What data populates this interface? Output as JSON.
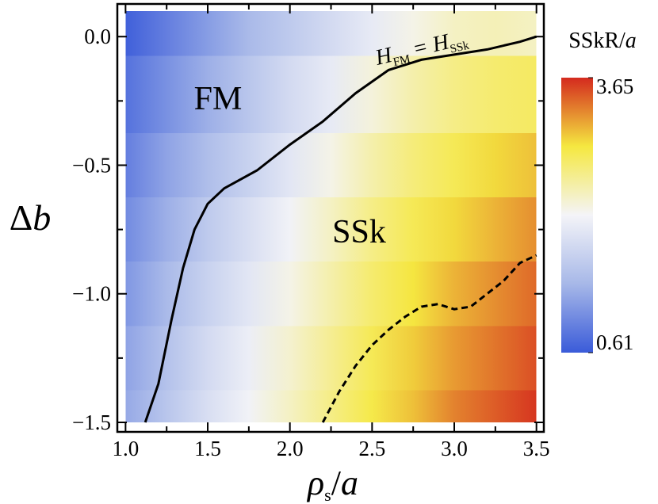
{
  "chart_data": {
    "type": "heatmap",
    "xlabel": [
      "ρ",
      "s",
      "/",
      "a"
    ],
    "ylabel": [
      "Δ",
      "b"
    ],
    "colorbar_label": [
      "SSkR/",
      "a"
    ],
    "xlim": [
      0.95,
      3.545
    ],
    "ylim": [
      -1.537,
      0.127
    ],
    "xticks": [
      {
        "value": 1,
        "label": "1.0"
      },
      {
        "value": 1.5,
        "label": "1.5"
      },
      {
        "value": 2,
        "label": "2.0"
      },
      {
        "value": 2.5,
        "label": "2.5"
      },
      {
        "value": 3,
        "label": "3.0"
      },
      {
        "value": 3.5,
        "label": "3.5"
      }
    ],
    "xminor": [
      1.25,
      1.75,
      2.25,
      2.75,
      3.25
    ],
    "yticks": [
      {
        "value": 0,
        "label": "0.0"
      },
      {
        "value": -0.5,
        "label": "−0.5"
      },
      {
        "value": -1,
        "label": "−1.0"
      },
      {
        "value": -1.5,
        "label": "−1.5"
      }
    ],
    "yminor": [
      -0.25,
      -0.75,
      -1.25
    ],
    "x": [
      1.0,
      1.25,
      1.5,
      1.75,
      2.0,
      2.25,
      2.5,
      2.75,
      3.0,
      3.25,
      3.5
    ],
    "y": [
      0.1,
      -0.25,
      -0.5,
      -0.75,
      -1.0,
      -1.25,
      -1.5
    ],
    "z": [
      [
        0.65,
        0.9,
        1.15,
        1.4,
        1.6,
        1.8,
        2.0,
        2.2,
        2.35,
        2.4,
        2.35
      ],
      [
        0.8,
        1.05,
        1.3,
        1.55,
        1.8,
        2.0,
        2.25,
        2.45,
        2.6,
        2.7,
        2.75
      ],
      [
        0.9,
        1.2,
        1.45,
        1.7,
        1.95,
        2.2,
        2.45,
        2.65,
        2.8,
        2.95,
        3.05
      ],
      [
        1.0,
        1.3,
        1.6,
        1.85,
        2.1,
        2.35,
        2.6,
        2.8,
        2.95,
        3.1,
        3.25
      ],
      [
        1.1,
        1.4,
        1.7,
        1.95,
        2.2,
        2.45,
        2.7,
        2.9,
        3.1,
        3.25,
        3.4
      ],
      [
        1.2,
        1.5,
        1.8,
        2.05,
        2.3,
        2.55,
        2.8,
        3.0,
        3.2,
        3.35,
        3.5
      ],
      [
        1.25,
        1.55,
        1.85,
        2.1,
        2.35,
        2.6,
        2.85,
        3.05,
        3.3,
        3.45,
        3.6
      ]
    ],
    "clim": [
      0.61,
      3.65
    ],
    "cticks": [
      0.61,
      3.65
    ],
    "colormap": [
      "#3a5bd9",
      "#a7b8e8",
      "#f4f4f8",
      "#f5e840",
      "#d42a1e"
    ],
    "lines": [
      {
        "style": "solid",
        "color": "#000000",
        "x": [
          1.12,
          1.2,
          1.28,
          1.35,
          1.42,
          1.5,
          1.6,
          1.8,
          2.0,
          2.2,
          2.4,
          2.6,
          2.8,
          3.0,
          3.2,
          3.4,
          3.5
        ],
        "y": [
          -1.5,
          -1.35,
          -1.1,
          -0.9,
          -0.75,
          -0.65,
          -0.59,
          -0.52,
          -0.42,
          -0.33,
          -0.22,
          -0.13,
          -0.09,
          -0.07,
          -0.05,
          -0.02,
          0.0
        ]
      },
      {
        "style": "dashed",
        "color": "#000000",
        "x": [
          2.2,
          2.3,
          2.4,
          2.5,
          2.6,
          2.7,
          2.8,
          2.9,
          3.0,
          3.1,
          3.2,
          3.3,
          3.4,
          3.5
        ],
        "y": [
          -1.5,
          -1.38,
          -1.28,
          -1.2,
          -1.14,
          -1.09,
          -1.05,
          -1.04,
          -1.06,
          -1.05,
          -1.0,
          -0.95,
          -0.88,
          -0.85
        ]
      }
    ],
    "contour_label": [
      "H",
      "FM",
      "=",
      "H",
      "SSk"
    ],
    "regions": [
      "FM",
      "SSk"
    ]
  }
}
